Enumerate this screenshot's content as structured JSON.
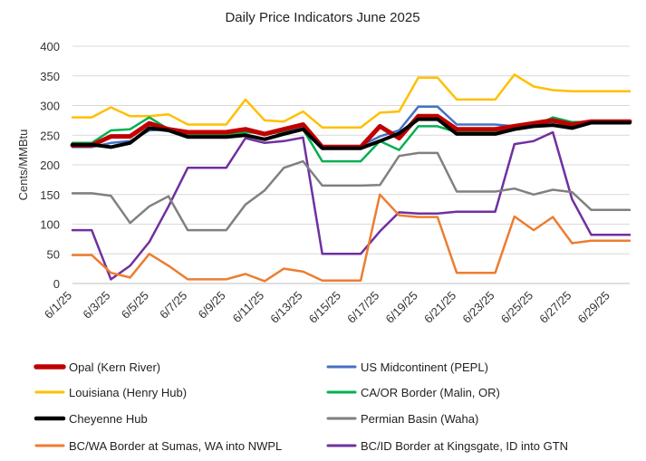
{
  "chart_data": {
    "type": "line",
    "title": "Daily Price Indicators June 2025",
    "xlabel": "",
    "ylabel": "Cents/MMBtu",
    "ylim": [
      0,
      400
    ],
    "yticks": [
      0,
      50,
      100,
      150,
      200,
      250,
      300,
      350,
      400
    ],
    "grid": true,
    "legend_position": "bottom",
    "x": [
      "6/1/25",
      "6/2/25",
      "6/3/25",
      "6/4/25",
      "6/5/25",
      "6/6/25",
      "6/7/25",
      "6/8/25",
      "6/9/25",
      "6/10/25",
      "6/11/25",
      "6/12/25",
      "6/13/25",
      "6/14/25",
      "6/15/25",
      "6/16/25",
      "6/17/25",
      "6/18/25",
      "6/19/25",
      "6/20/25",
      "6/21/25",
      "6/22/25",
      "6/23/25",
      "6/24/25",
      "6/25/25",
      "6/26/25",
      "6/27/25",
      "6/28/25",
      "6/29/25",
      "6/30/25"
    ],
    "x_tick_labels": [
      "6/1/25",
      "6/3/25",
      "6/5/25",
      "6/7/25",
      "6/9/25",
      "6/11/25",
      "6/13/25",
      "6/15/25",
      "6/17/25",
      "6/19/25",
      "6/21/25",
      "6/23/25",
      "6/25/25",
      "6/27/25",
      "6/29/25"
    ],
    "series": [
      {
        "name": "Opal (Kern River)",
        "color": "#c00000",
        "width": 5,
        "values": [
          233,
          233,
          248,
          248,
          270,
          260,
          255,
          255,
          255,
          260,
          252,
          260,
          268,
          230,
          230,
          230,
          265,
          245,
          282,
          282,
          260,
          260,
          260,
          265,
          270,
          275,
          268,
          273,
          273,
          273
        ]
      },
      {
        "name": "US Midcontinent (PEPL)",
        "color": "#4472c4",
        "width": 2.5,
        "values": [
          230,
          230,
          237,
          240,
          258,
          260,
          250,
          250,
          250,
          258,
          250,
          258,
          262,
          232,
          232,
          232,
          248,
          258,
          298,
          298,
          268,
          268,
          268,
          265,
          270,
          272,
          268,
          273,
          273,
          273
        ]
      },
      {
        "name": "Louisiana (Henry Hub)",
        "color": "#ffc000",
        "width": 2.5,
        "values": [
          280,
          280,
          297,
          282,
          282,
          285,
          268,
          268,
          268,
          310,
          275,
          273,
          290,
          263,
          263,
          263,
          288,
          290,
          347,
          347,
          310,
          310,
          310,
          352,
          332,
          326,
          324,
          324,
          324,
          324
        ]
      },
      {
        "name": "CA/OR Border (Malin, OR)",
        "color": "#00b050",
        "width": 2.5,
        "values": [
          237,
          237,
          258,
          260,
          280,
          260,
          250,
          250,
          250,
          255,
          253,
          255,
          260,
          206,
          206,
          206,
          240,
          225,
          265,
          265,
          255,
          255,
          255,
          265,
          265,
          280,
          272,
          272,
          272,
          272
        ]
      },
      {
        "name": "Cheyenne Hub",
        "color": "#000000",
        "width": 4,
        "values": [
          234,
          234,
          230,
          237,
          262,
          258,
          247,
          247,
          247,
          250,
          243,
          252,
          260,
          228,
          228,
          228,
          240,
          253,
          277,
          277,
          252,
          252,
          252,
          260,
          265,
          267,
          262,
          271,
          271,
          271
        ]
      },
      {
        "name": "Permian Basin (Waha)",
        "color": "#808080",
        "width": 2.5,
        "values": [
          152,
          152,
          148,
          102,
          130,
          147,
          90,
          90,
          90,
          133,
          157,
          195,
          206,
          165,
          165,
          165,
          166,
          215,
          220,
          220,
          155,
          155,
          155,
          160,
          150,
          158,
          154,
          124,
          124,
          124
        ]
      },
      {
        "name": "BC/WA Border at Sumas, WA into NWPL",
        "color": "#ed7d31",
        "width": 2.5,
        "values": [
          48,
          48,
          18,
          10,
          50,
          30,
          7,
          7,
          7,
          16,
          4,
          25,
          20,
          5,
          5,
          5,
          150,
          115,
          112,
          112,
          18,
          18,
          18,
          113,
          90,
          112,
          68,
          72,
          72,
          72
        ]
      },
      {
        "name": "BC/ID Border at Kingsgate, ID into GTN",
        "color": "#7030a0",
        "width": 2.5,
        "values": [
          90,
          90,
          7,
          30,
          70,
          130,
          195,
          195,
          195,
          245,
          237,
          240,
          246,
          50,
          50,
          50,
          88,
          120,
          118,
          118,
          121,
          121,
          121,
          235,
          240,
          255,
          142,
          82,
          82,
          82
        ]
      }
    ]
  }
}
